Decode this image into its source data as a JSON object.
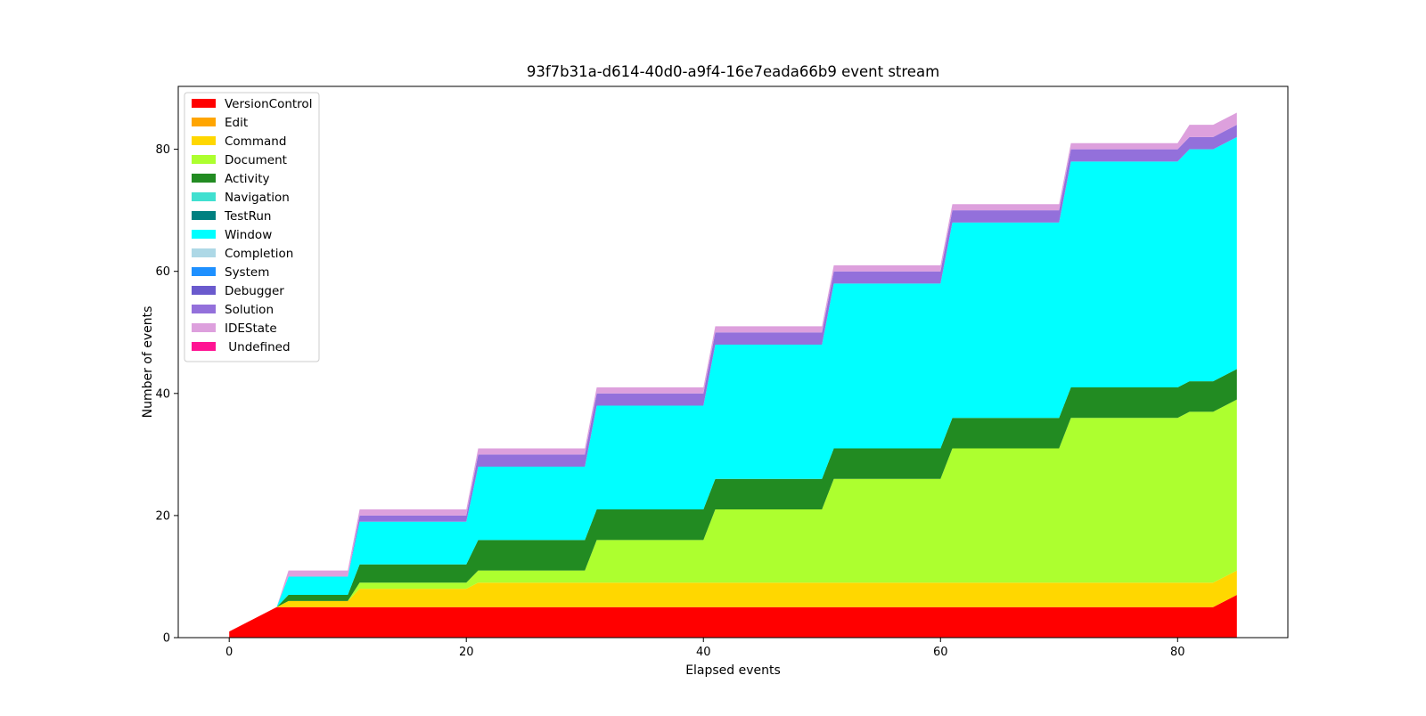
{
  "chart_data": {
    "type": "area",
    "stacked": true,
    "title": "93f7b31a-d614-40d0-a9f4-16e7eada66b9 event stream",
    "xlabel": "Elapsed events",
    "ylabel": "Number of events",
    "xlim": [
      -4.3,
      89.3
    ],
    "ylim": [
      0,
      90.3
    ],
    "xticks": [
      0,
      20,
      40,
      60,
      80
    ],
    "yticks": [
      0,
      20,
      40,
      60,
      80
    ],
    "grid": false,
    "legend_position": "top-left",
    "x": [
      0,
      4,
      5,
      10,
      11,
      20,
      21,
      30,
      31,
      40,
      41,
      50,
      51,
      60,
      61,
      70,
      71,
      80,
      81,
      83,
      85
    ],
    "series": [
      {
        "name": "VersionControl",
        "color": "#ff0000",
        "values": [
          1,
          5,
          5,
          5,
          5,
          5,
          5,
          5,
          5,
          5,
          5,
          5,
          5,
          5,
          5,
          5,
          5,
          5,
          5,
          5,
          7
        ]
      },
      {
        "name": "Edit",
        "color": "#ffa500",
        "values": [
          0,
          0,
          0,
          0,
          0,
          0,
          0,
          0,
          0,
          0,
          0,
          0,
          0,
          0,
          0,
          0,
          0,
          0,
          0,
          0,
          0
        ]
      },
      {
        "name": "Command",
        "color": "#ffd700",
        "values": [
          0,
          0,
          1,
          1,
          3,
          3,
          4,
          4,
          4,
          4,
          4,
          4,
          4,
          4,
          4,
          4,
          4,
          4,
          4,
          4,
          4
        ]
      },
      {
        "name": "Document",
        "color": "#adff2f",
        "values": [
          0,
          0,
          0,
          0,
          1,
          1,
          2,
          2,
          7,
          7,
          12,
          12,
          17,
          17,
          22,
          22,
          27,
          27,
          28,
          28,
          28
        ]
      },
      {
        "name": "Activity",
        "color": "#228b22",
        "values": [
          0,
          0,
          1,
          1,
          3,
          3,
          5,
          5,
          5,
          5,
          5,
          5,
          5,
          5,
          5,
          5,
          5,
          5,
          5,
          5,
          5
        ]
      },
      {
        "name": "Navigation",
        "color": "#40e0d0",
        "values": [
          0,
          0,
          0,
          0,
          0,
          0,
          0,
          0,
          0,
          0,
          0,
          0,
          0,
          0,
          0,
          0,
          0,
          0,
          0,
          0,
          0
        ]
      },
      {
        "name": "TestRun",
        "color": "#008080",
        "values": [
          0,
          0,
          0,
          0,
          0,
          0,
          0,
          0,
          0,
          0,
          0,
          0,
          0,
          0,
          0,
          0,
          0,
          0,
          0,
          0,
          0
        ]
      },
      {
        "name": "Window",
        "color": "#00ffff",
        "values": [
          0,
          0,
          3,
          3,
          7,
          7,
          12,
          12,
          17,
          17,
          22,
          22,
          27,
          27,
          32,
          32,
          37,
          37,
          38,
          38,
          38
        ]
      },
      {
        "name": "Completion",
        "color": "#add8e6",
        "values": [
          0,
          0,
          0,
          0,
          0,
          0,
          0,
          0,
          0,
          0,
          0,
          0,
          0,
          0,
          0,
          0,
          0,
          0,
          0,
          0,
          0
        ]
      },
      {
        "name": "System",
        "color": "#1e90ff",
        "values": [
          0,
          0,
          0,
          0,
          0,
          0,
          0,
          0,
          0,
          0,
          0,
          0,
          0,
          0,
          0,
          0,
          0,
          0,
          0,
          0,
          0
        ]
      },
      {
        "name": "Debugger",
        "color": "#6a5acd",
        "values": [
          0,
          0,
          0,
          0,
          0,
          0,
          0,
          0,
          0,
          0,
          0,
          0,
          0,
          0,
          0,
          0,
          0,
          0,
          0,
          0,
          0
        ]
      },
      {
        "name": "Solution",
        "color": "#9370db",
        "values": [
          0,
          0,
          0,
          0,
          1,
          1,
          2,
          2,
          2,
          2,
          2,
          2,
          2,
          2,
          2,
          2,
          2,
          2,
          2,
          2,
          2
        ]
      },
      {
        "name": "IDEState",
        "color": "#dda0dd",
        "values": [
          0,
          0,
          1,
          1,
          1,
          1,
          1,
          1,
          1,
          1,
          1,
          1,
          1,
          1,
          1,
          1,
          1,
          1,
          2,
          2,
          2
        ]
      },
      {
        "name": " Undefined",
        "color": "#ff1493",
        "values": [
          0,
          0,
          0,
          0,
          0,
          0,
          0,
          0,
          0,
          0,
          0,
          0,
          0,
          0,
          0,
          0,
          0,
          0,
          0,
          0,
          0
        ]
      }
    ]
  }
}
